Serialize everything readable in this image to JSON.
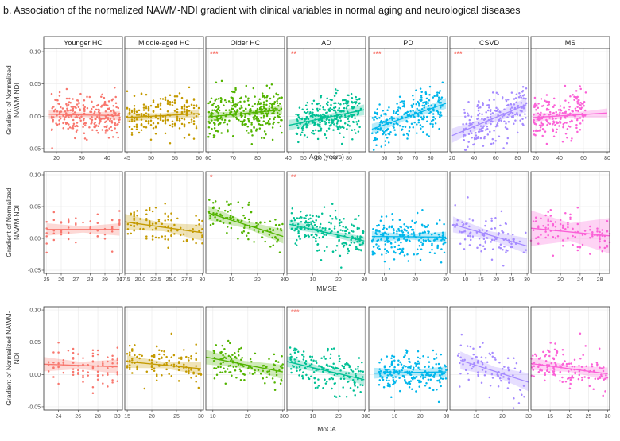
{
  "figure": {
    "title": "b. Association of the normalized NAWM-NDI gradient with clinical variables in normal aging and neurological diseases"
  },
  "groups": [
    {
      "name": "Younger HC",
      "color": "#F8766D"
    },
    {
      "name": "Middle-aged HC",
      "color": "#C49A00"
    },
    {
      "name": "Older HC",
      "color": "#53B400"
    },
    {
      "name": "AD",
      "color": "#00C094"
    },
    {
      "name": "PD",
      "color": "#00B6EB"
    },
    {
      "name": "CSVD",
      "color": "#A58AFF"
    },
    {
      "name": "MS",
      "color": "#FB61D7"
    }
  ],
  "significance_color": "#F8766D",
  "chart_data": [
    {
      "type": "scatter",
      "row": 1,
      "title": "b. Association of the normalized NAWM-NDI gradient with clinical variables in normal aging and neurological diseases",
      "xlabel": "Age (years)",
      "ylabel": [
        "Gradient of Normalized",
        "NAWM-NDI"
      ],
      "ylim": [
        -0.055,
        0.105
      ],
      "yticks": [
        -0.05,
        0.0,
        0.05,
        0.1
      ],
      "ytick_labels": [
        "-0.05",
        "0.00",
        "0.05",
        "0.10"
      ],
      "grid": true,
      "panels": [
        {
          "group": "Younger HC",
          "xlim": [
            15,
            46
          ],
          "xticks": [
            20,
            30,
            40
          ],
          "xtick_labels": [
            "20",
            "30",
            "40"
          ],
          "fit": [
            [
              17,
              0.003
            ],
            [
              45,
              0.001
            ]
          ],
          "band": 0.005,
          "n": 260,
          "x_range": [
            18,
            45
          ],
          "y_sd": 0.015,
          "signif": ""
        },
        {
          "group": "Middle-aged HC",
          "xlim": [
            44.5,
            61
          ],
          "xticks": [
            45,
            50,
            55,
            60
          ],
          "xtick_labels": [
            "45",
            "50",
            "55",
            "60"
          ],
          "fit": [
            [
              45,
              -0.002
            ],
            [
              60,
              0.004
            ]
          ],
          "band": 0.005,
          "n": 220,
          "x_range": [
            45,
            60
          ],
          "y_sd": 0.015,
          "signif": ""
        },
        {
          "group": "Older HC",
          "xlim": [
            59,
            91
          ],
          "xticks": [
            60,
            70,
            80
          ],
          "xtick_labels": [
            "60",
            "70",
            "80"
          ],
          "fit": [
            [
              60,
              -0.001
            ],
            [
              90,
              0.01
            ]
          ],
          "band": 0.005,
          "n": 320,
          "x_range": [
            60,
            90
          ],
          "y_sd": 0.017,
          "signif": "***"
        },
        {
          "group": "AD",
          "xlim": [
            39,
            91
          ],
          "xticks": [
            40,
            50,
            60,
            70,
            80
          ],
          "xtick_labels": [
            "40",
            "50",
            "60",
            "70",
            "80"
          ],
          "fit": [
            [
              40,
              -0.014
            ],
            [
              90,
              0.01
            ]
          ],
          "band": 0.006,
          "n": 280,
          "x_range": [
            45,
            88
          ],
          "y_sd": 0.016,
          "signif": "**"
        },
        {
          "group": "PD",
          "xlim": [
            40,
            91
          ],
          "xticks": [
            50,
            60,
            70,
            80
          ],
          "xtick_labels": [
            "50",
            "60",
            "70",
            "80"
          ],
          "fit": [
            [
              42,
              -0.02
            ],
            [
              90,
              0.02
            ]
          ],
          "band": 0.006,
          "n": 250,
          "x_range": [
            42,
            88
          ],
          "y_sd": 0.016,
          "signif": "***"
        },
        {
          "group": "CSVD",
          "xlim": [
            18,
            90
          ],
          "xticks": [
            20,
            40,
            60,
            80
          ],
          "xtick_labels": [
            "20",
            "40",
            "60",
            "80"
          ],
          "fit": [
            [
              20,
              -0.03
            ],
            [
              88,
              0.018
            ]
          ],
          "band": 0.008,
          "n": 210,
          "x_range": [
            30,
            88
          ],
          "y_sd": 0.018,
          "signif": "***"
        },
        {
          "group": "MS",
          "xlim": [
            16,
            82
          ],
          "xticks": [
            20,
            40,
            60,
            80
          ],
          "xtick_labels": [
            "20",
            "40",
            "60",
            "80"
          ],
          "fit": [
            [
              18,
              -0.002
            ],
            [
              80,
              0.005
            ]
          ],
          "band": 0.005,
          "n": 200,
          "x_range": [
            18,
            62
          ],
          "y_sd": 0.017,
          "signif": ""
        }
      ]
    },
    {
      "type": "scatter",
      "row": 2,
      "xlabel": "MMSE",
      "ylabel": [
        "Gradient of Normalized",
        "NAWM-NDI"
      ],
      "ylim": [
        -0.055,
        0.105
      ],
      "yticks": [
        -0.05,
        0.0,
        0.05,
        0.1
      ],
      "ytick_labels": [
        "-0.05",
        "0.00",
        "0.05",
        "0.10"
      ],
      "grid": true,
      "panels": [
        {
          "group": "Younger HC",
          "xlim": [
            24.8,
            30.2
          ],
          "xticks": [
            25,
            26,
            27,
            28,
            29,
            30
          ],
          "xtick_labels": [
            "25",
            "26",
            "27",
            "28",
            "29",
            "30"
          ],
          "fit": [
            [
              25,
              0.014
            ],
            [
              30,
              0.014
            ]
          ],
          "band": 0.007,
          "n": 55,
          "x_range": [
            25,
            30
          ],
          "y_sd": 0.015,
          "signif": ""
        },
        {
          "group": "Middle-aged HC",
          "xlim": [
            17.5,
            30.2
          ],
          "xticks": [
            17.5,
            20,
            22.5,
            25,
            27.5,
            30
          ],
          "xtick_labels": [
            "17.5",
            "20.0",
            "22.5",
            "25.0",
            "27.5",
            "30"
          ],
          "fit": [
            [
              17.5,
              0.026
            ],
            [
              30,
              0.009
            ]
          ],
          "band": 0.009,
          "n": 100,
          "x_range": [
            18,
            30
          ],
          "y_sd": 0.015,
          "signif": ""
        },
        {
          "group": "Older HC",
          "xlim": [
            0,
            30.5
          ],
          "xticks": [
            10,
            20,
            30
          ],
          "xtick_labels": [
            "10",
            "20",
            "30"
          ],
          "fit": [
            [
              1,
              0.04
            ],
            [
              30,
              0.003
            ]
          ],
          "band": 0.008,
          "n": 110,
          "x_range": [
            1,
            30
          ],
          "y_sd": 0.015,
          "signif": "*"
        },
        {
          "group": "AD",
          "xlim": [
            0,
            30.5
          ],
          "xticks": [
            0,
            10,
            20,
            30
          ],
          "xtick_labels": [
            "0",
            "10",
            "20",
            "30"
          ],
          "fit": [
            [
              1,
              0.022
            ],
            [
              30,
              -0.004
            ]
          ],
          "band": 0.005,
          "n": 200,
          "x_range": [
            1,
            30
          ],
          "y_sd": 0.015,
          "signif": "**"
        },
        {
          "group": "PD",
          "xlim": [
            5,
            30.5
          ],
          "xticks": [
            10,
            20,
            30
          ],
          "xtick_labels": [
            "10",
            "20",
            "30"
          ],
          "fit": [
            [
              6,
              0.003
            ],
            [
              30,
              0.002
            ]
          ],
          "band": 0.006,
          "n": 220,
          "x_range": [
            6,
            30
          ],
          "y_sd": 0.015,
          "signif": ""
        },
        {
          "group": "CSVD",
          "xlim": [
            5,
            30.5
          ],
          "xticks": [
            10,
            15,
            20,
            25,
            30
          ],
          "xtick_labels": [
            "10",
            "15",
            "20",
            "25",
            "30"
          ],
          "fit": [
            [
              6,
              0.022
            ],
            [
              30,
              -0.012
            ]
          ],
          "band": 0.009,
          "n": 100,
          "x_range": [
            6,
            30
          ],
          "y_sd": 0.018,
          "signif": ""
        },
        {
          "group": "MS",
          "xlim": [
            14,
            30
          ],
          "xticks": [
            20,
            24,
            28
          ],
          "xtick_labels": [
            "20",
            "24",
            "28"
          ],
          "fit": [
            [
              14,
              0.016
            ],
            [
              30,
              0.004
            ]
          ],
          "band": 0.02,
          "n": 110,
          "x_range": [
            14,
            30
          ],
          "y_sd": 0.015,
          "signif": ""
        }
      ]
    },
    {
      "type": "scatter",
      "row": 3,
      "xlabel": "MoCA",
      "ylabel": [
        "Gradient of Normalized NAWM-",
        "NDI"
      ],
      "ylim": [
        -0.055,
        0.105
      ],
      "yticks": [
        -0.05,
        0.0,
        0.05,
        0.1
      ],
      "ytick_labels": [
        "-0.05",
        "0.00",
        "0.05",
        "0.10"
      ],
      "grid": true,
      "panels": [
        {
          "group": "Younger HC",
          "xlim": [
            22.5,
            30.5
          ],
          "xticks": [
            24,
            26,
            28,
            30
          ],
          "xtick_labels": [
            "24",
            "26",
            "28",
            "30"
          ],
          "fit": [
            [
              22.5,
              0.016
            ],
            [
              30,
              0.012
            ]
          ],
          "band": 0.008,
          "n": 90,
          "x_range": [
            23,
            30
          ],
          "y_sd": 0.014,
          "signif": ""
        },
        {
          "group": "Middle-aged HC",
          "xlim": [
            14.5,
            30.5
          ],
          "xticks": [
            15,
            20,
            25,
            30
          ],
          "xtick_labels": [
            "15",
            "20",
            "25",
            "30"
          ],
          "fit": [
            [
              15,
              0.02
            ],
            [
              30,
              0.009
            ]
          ],
          "band": 0.007,
          "n": 120,
          "x_range": [
            15,
            30
          ],
          "y_sd": 0.014,
          "signif": ""
        },
        {
          "group": "Older HC",
          "xlim": [
            8,
            30.5
          ],
          "xticks": [
            10,
            20,
            30
          ],
          "xtick_labels": [
            "10",
            "20",
            "30"
          ],
          "fit": [
            [
              8,
              0.027
            ],
            [
              30,
              0.004
            ]
          ],
          "band": 0.008,
          "n": 120,
          "x_range": [
            10,
            30
          ],
          "y_sd": 0.014,
          "signif": ""
        },
        {
          "group": "AD",
          "xlim": [
            0,
            30.5
          ],
          "xticks": [
            0,
            10,
            20,
            30
          ],
          "xtick_labels": [
            "0",
            "10",
            "20",
            "30"
          ],
          "fit": [
            [
              0,
              0.02
            ],
            [
              30,
              -0.008
            ]
          ],
          "band": 0.006,
          "n": 170,
          "x_range": [
            1,
            30
          ],
          "y_sd": 0.015,
          "signif": "***"
        },
        {
          "group": "PD",
          "xlim": [
            0,
            30.5
          ],
          "xticks": [
            0,
            10,
            20,
            30
          ],
          "xtick_labels": [
            "0",
            "10",
            "20",
            "30"
          ],
          "fit": [
            [
              2,
              0.002
            ],
            [
              30,
              0.004
            ]
          ],
          "band": 0.006,
          "n": 210,
          "x_range": [
            4,
            30
          ],
          "y_sd": 0.015,
          "signif": ""
        },
        {
          "group": "CSVD",
          "xlim": [
            0,
            30
          ],
          "xticks": [
            10,
            20,
            30
          ],
          "xtick_labels": [
            "10",
            "20",
            "30"
          ],
          "fit": [
            [
              4,
              0.022
            ],
            [
              30,
              -0.012
            ]
          ],
          "band": 0.01,
          "n": 90,
          "x_range": [
            3,
            29
          ],
          "y_sd": 0.018,
          "signif": ""
        },
        {
          "group": "MS",
          "xlim": [
            10,
            30.5
          ],
          "xticks": [
            15,
            20,
            25,
            30
          ],
          "xtick_labels": [
            "15",
            "20",
            "25",
            "30"
          ],
          "fit": [
            [
              10,
              0.017
            ],
            [
              30,
              0.001
            ]
          ],
          "band": 0.007,
          "n": 140,
          "x_range": [
            10,
            30
          ],
          "y_sd": 0.015,
          "signif": ""
        }
      ]
    }
  ]
}
